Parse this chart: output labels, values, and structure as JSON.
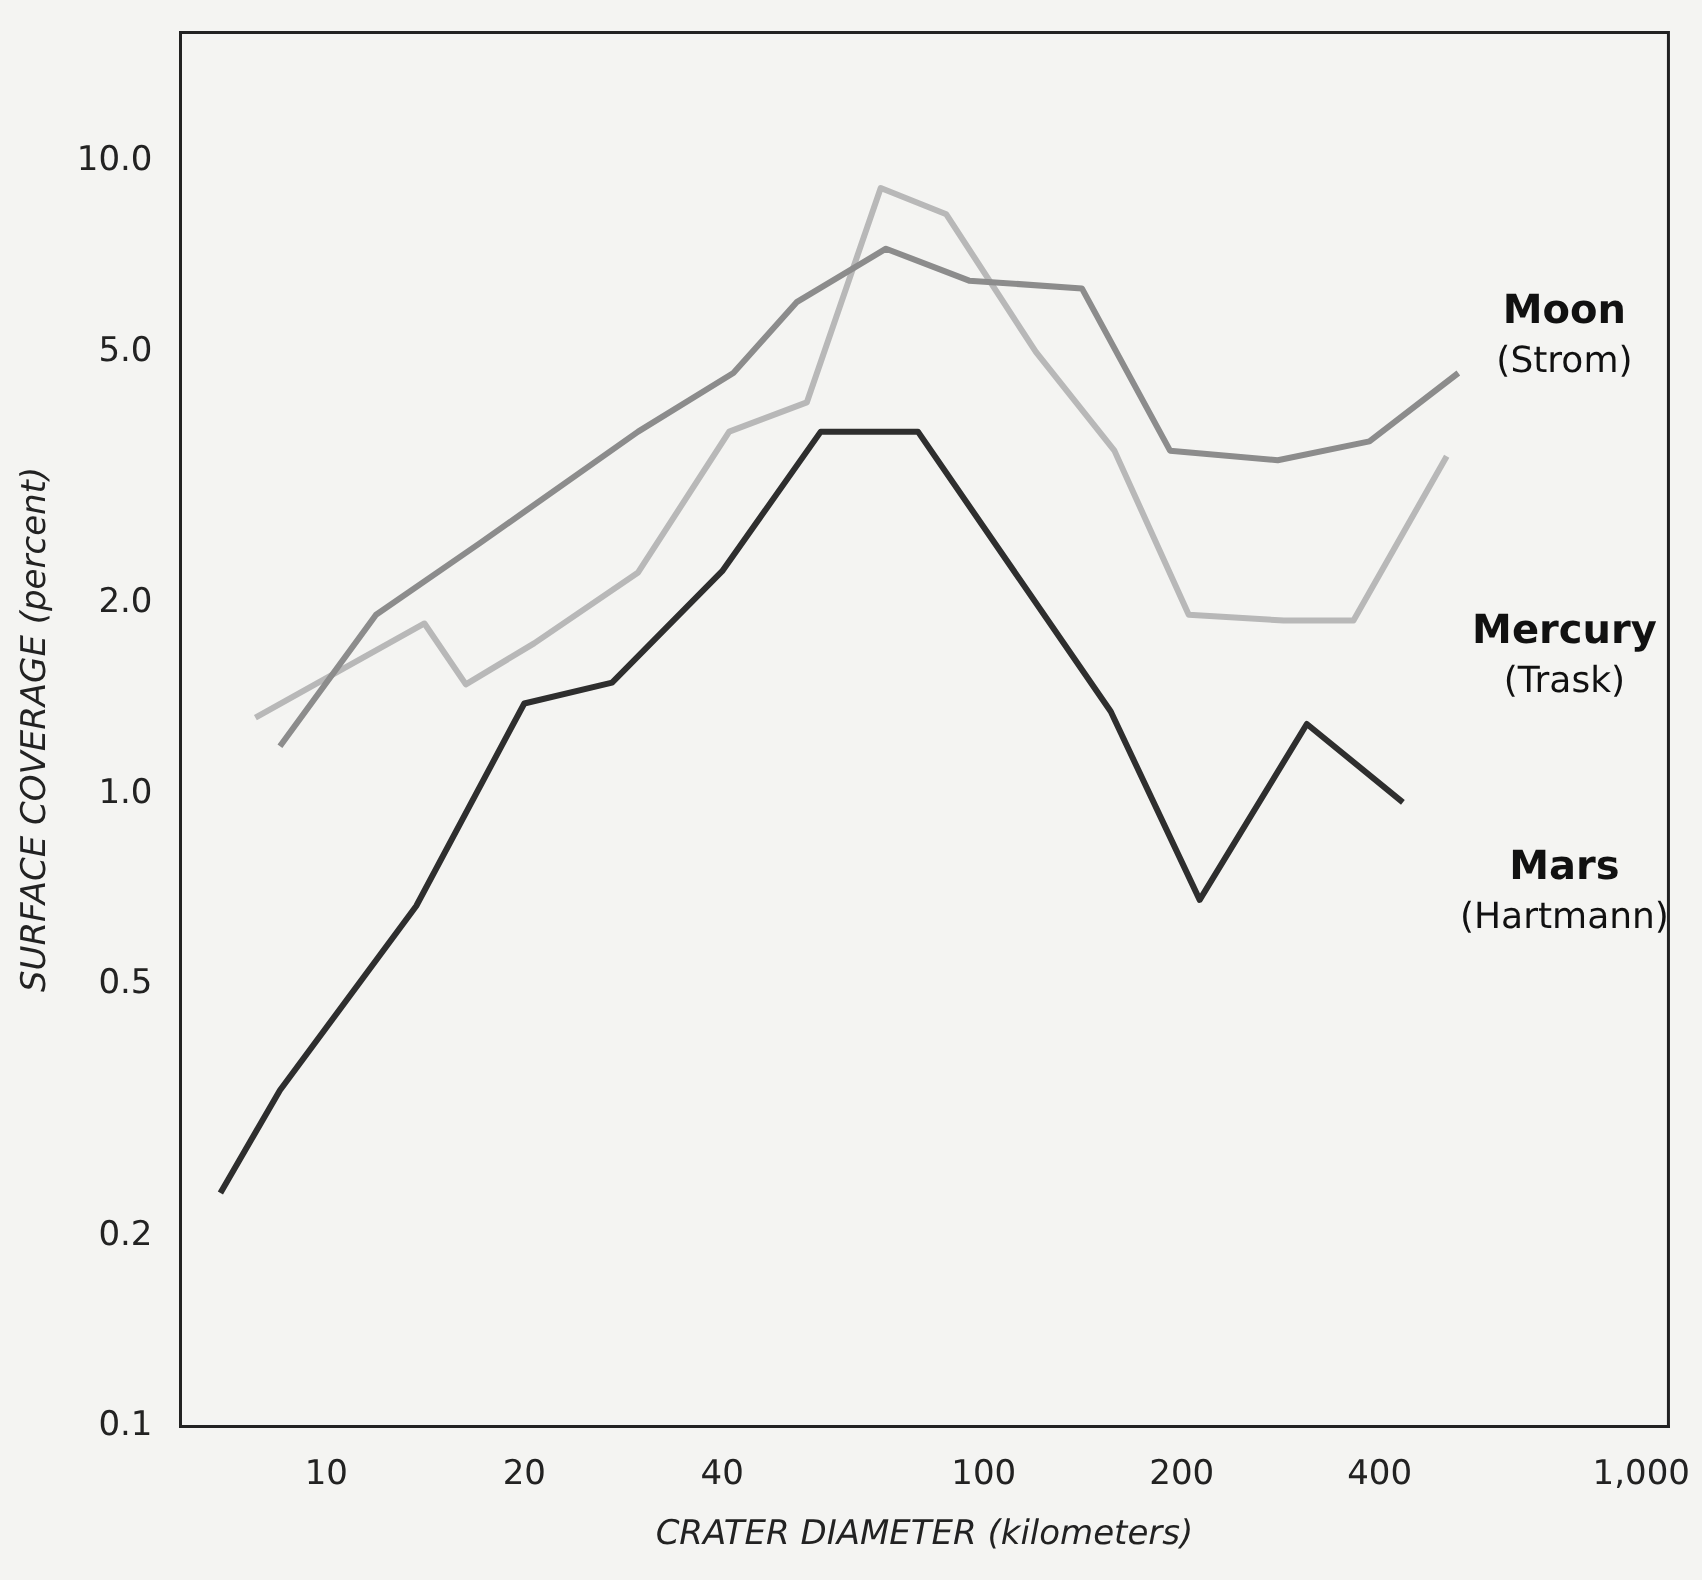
{
  "chart_data": {
    "type": "line",
    "xlabel": "CRATER DIAMETER (kilometers)",
    "ylabel": "SURFACE COVERAGE (percent)",
    "log": "xy",
    "grid": false,
    "legend": false,
    "marker": "none",
    "line_style": "solid",
    "xlim": [
      6,
      1100
    ],
    "xticks": [
      10,
      20,
      40,
      100,
      200,
      400,
      {
        "value": 1000,
        "label": "1,000"
      }
    ],
    "ylim": [
      0.1,
      16
    ],
    "yticks": [
      {
        "value": 0.1,
        "label": "0.1"
      },
      {
        "value": 0.2,
        "label": "0.2"
      },
      {
        "value": 0.5,
        "label": "0.5"
      },
      {
        "value": 1,
        "label": "1.0"
      },
      {
        "value": 2,
        "label": "2.0"
      },
      {
        "value": 5,
        "label": "5.0"
      },
      {
        "value": 10,
        "label": "10.0"
      }
    ],
    "series": [
      {
        "name": "Moon (Strom)",
        "color": "#8c8c8c",
        "x": [
          8.5,
          11.9,
          17.1,
          29.8,
          41.6,
          52,
          71,
          95,
          141,
          192,
          280,
          386,
          527
        ],
        "values": [
          1.19,
          1.92,
          2.49,
          3.74,
          4.63,
          6.0,
          7.28,
          6.48,
          6.3,
          3.49,
          3.37,
          3.61,
          4.63
        ]
      },
      {
        "name": "Mercury (Trask)",
        "color": "#b8b8b8",
        "x": [
          7.8,
          14.1,
          16.3,
          20.7,
          29.8,
          41,
          53.8,
          69.7,
          87.7,
          120,
          158,
          205,
          286,
          365,
          506
        ],
        "values": [
          1.32,
          1.86,
          1.49,
          1.73,
          2.24,
          3.74,
          4.16,
          9.08,
          8.25,
          5.0,
          3.49,
          1.92,
          1.88,
          1.88,
          3.42
        ]
      },
      {
        "name": "Mars (Hartmann)",
        "color": "#2e2e2e",
        "x": [
          6.9,
          8.5,
          13.7,
          20,
          27.2,
          40,
          56.5,
          79.4,
          156,
          213,
          310,
          434
        ],
        "values": [
          0.234,
          0.34,
          0.665,
          1.39,
          1.5,
          2.25,
          3.74,
          3.74,
          1.35,
          0.68,
          1.29,
          0.97
        ]
      }
    ]
  }
}
